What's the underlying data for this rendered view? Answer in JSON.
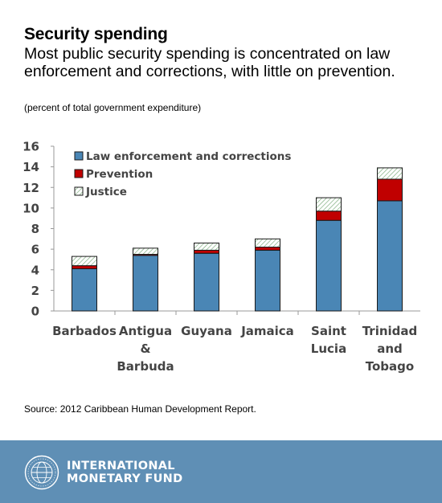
{
  "title": "Security spending",
  "subtitle": "Most public security spending is concentrated on law enforcement and corrections, with little on prevention.",
  "units": "(percent of total government expenditure)",
  "source": "Source: 2012 Caribbean Human Development Report.",
  "footer": {
    "org_line1": "INTERNATIONAL",
    "org_line2": "MONETARY FUND",
    "logo_icon": "imf-seal-icon"
  },
  "colors": {
    "law": "#4a86b5",
    "prevention": "#c00000",
    "justice_hatch": "#8fbf8f",
    "footer_bg": "#5f8fb5"
  },
  "chart_data": {
    "type": "bar",
    "stacked": true,
    "categories": [
      [
        "Barbados"
      ],
      [
        "Antigua",
        "&",
        "Barbuda"
      ],
      [
        "Guyana"
      ],
      [
        "Jamaica"
      ],
      [
        "Saint",
        "Lucia"
      ],
      [
        "Trinidad",
        "and",
        "Tobago"
      ]
    ],
    "series": [
      {
        "name": "Law enforcement and corrections",
        "values": [
          4.1,
          5.4,
          5.6,
          5.9,
          8.8,
          10.7
        ],
        "style": "solid-blue"
      },
      {
        "name": "Prevention",
        "values": [
          0.3,
          0.1,
          0.3,
          0.3,
          0.9,
          2.1
        ],
        "style": "solid-red"
      },
      {
        "name": "Justice",
        "values": [
          0.9,
          0.6,
          0.7,
          0.8,
          1.3,
          1.1
        ],
        "style": "hatched"
      }
    ],
    "ylim": [
      0,
      16
    ],
    "yticks": [
      "0",
      "2",
      "4",
      "6",
      "8",
      "10",
      "12",
      "14",
      "16"
    ],
    "xlabel": "",
    "ylabel": "",
    "grid": false,
    "legend_position": "top-left"
  }
}
